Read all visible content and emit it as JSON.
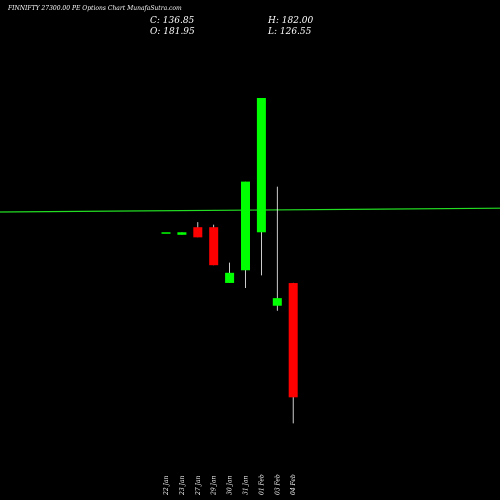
{
  "header": {
    "title": "FINNIFTY 27300.00 PE Options Chart MunafaSutra.com",
    "close_label": "C: 136.85",
    "high_label": "H: 182.00",
    "open_label": "O: 181.95",
    "low_label": "L: 126.55"
  },
  "colors": {
    "background": "#000000",
    "up": "#00ff00",
    "down": "#ff0000",
    "wick": "#ffffff",
    "reference_line": "#22dd22",
    "text": "#ffffff"
  },
  "chart_data": {
    "type": "candlestick",
    "categories": [
      "22 Jan",
      "23 Jan",
      "27 Jan",
      "29 Jan",
      "30 Jan",
      "31 Jan",
      "01 Feb",
      "03 Feb",
      "04 Feb"
    ],
    "series": [
      {
        "open": [
          202.0,
          201.0,
          204.0,
          204.0,
          182.0,
          187.0,
          202.0,
          173.0,
          181.95
        ],
        "high": [
          202.0,
          202.0,
          206.0,
          205.0,
          190.0,
          222.0,
          255.0,
          220.0,
          182.0
        ],
        "low": [
          202.0,
          201.0,
          200.0,
          189.0,
          182.0,
          180.0,
          185.0,
          171.0,
          126.55
        ],
        "close": [
          202.0,
          202.0,
          200.0,
          189.0,
          186.0,
          222.0,
          255.0,
          176.0,
          136.85
        ]
      }
    ],
    "reference_line": {
      "start": 210.0,
      "end": 211.5
    },
    "ylim": [
      120,
      270
    ],
    "grid": false,
    "legend": "none"
  }
}
